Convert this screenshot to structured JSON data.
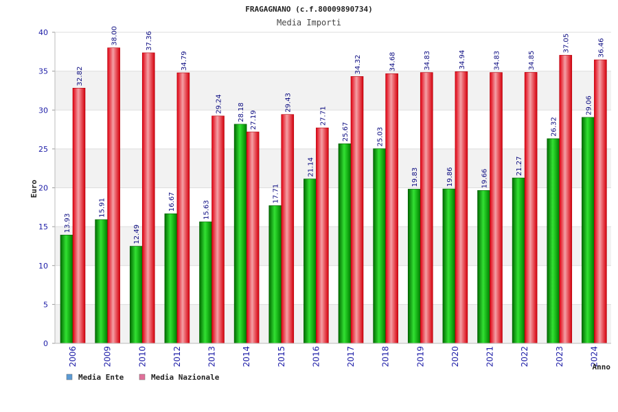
{
  "chart_data": {
    "type": "bar",
    "title": "FRAGAGNANO (c.f.80009890734)",
    "subtitle": "Media Importi",
    "ylabel": "Euro",
    "xlabel": "Anno",
    "ylim": [
      0,
      40
    ],
    "yticks": [
      0,
      5,
      10,
      15,
      20,
      25,
      30,
      35,
      40
    ],
    "categories": [
      "2006",
      "2009",
      "2010",
      "2012",
      "2013",
      "2014",
      "2015",
      "2016",
      "2017",
      "2018",
      "2019",
      "2020",
      "2021",
      "2022",
      "2023",
      "2024"
    ],
    "series": [
      {
        "name": "Media Ente",
        "color": "#00b000",
        "legend_color": "#5b9bd5",
        "values": [
          13.93,
          15.91,
          12.49,
          16.67,
          15.63,
          28.18,
          17.71,
          21.14,
          25.67,
          25.03,
          19.83,
          19.86,
          19.66,
          21.27,
          26.32,
          29.06
        ],
        "labels": [
          "13.93",
          "15.91",
          "12.49",
          "16.67",
          "15.63",
          "28.18",
          "17.71",
          "21.14",
          "25.67",
          "25.03",
          "19.83",
          "19.86",
          "19.66",
          "21.27",
          "26.32",
          "29.06"
        ]
      },
      {
        "name": "Media Nazionale",
        "color": "#e8101e",
        "legend_color": "#e0709a",
        "values": [
          32.82,
          38.0,
          37.36,
          34.79,
          29.24,
          27.19,
          29.43,
          27.71,
          34.32,
          34.68,
          34.83,
          34.94,
          34.83,
          34.85,
          37.05,
          36.46
        ],
        "labels": [
          "32.82",
          "38.00",
          "37.36",
          "34.79",
          "29.24",
          "27.19",
          "29.43",
          "27.71",
          "34.32",
          "34.68",
          "34.83",
          "34.94",
          "34.83",
          "34.85",
          "37.05",
          "36.46"
        ]
      }
    ],
    "grid": true,
    "legend_position": "bottom-left"
  }
}
